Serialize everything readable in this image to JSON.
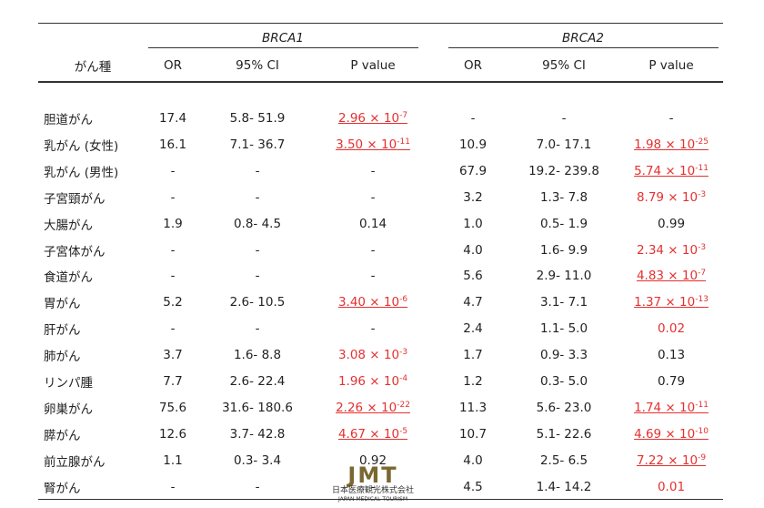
{
  "table": {
    "groups": [
      "BRCA1",
      "BRCA2"
    ],
    "columns": [
      "がん種",
      "OR",
      "95% CI",
      "P value",
      "OR",
      "95% CI",
      "P value"
    ],
    "rows": [
      {
        "name": "胆道がん",
        "cells": [
          "17.4",
          "5.8- 51.9",
          {
            "text": "2.96 × 10",
            "sup": "-7",
            "color": "red",
            "underline": true
          },
          "-",
          "-",
          "-"
        ]
      },
      {
        "name": "乳がん (女性)",
        "cells": [
          "16.1",
          "7.1- 36.7",
          {
            "text": "3.50 × 10",
            "sup": "-11",
            "color": "red",
            "underline": true
          },
          "10.9",
          "7.0- 17.1",
          {
            "text": "1.98 × 10",
            "sup": "-25",
            "color": "red",
            "underline": true
          }
        ]
      },
      {
        "name": "乳がん (男性)",
        "cells": [
          "-",
          "-",
          "-",
          "67.9",
          "19.2- 239.8",
          {
            "text": "5.74 × 10",
            "sup": "-11",
            "color": "red",
            "underline": true
          }
        ]
      },
      {
        "name": "子宮頸がん",
        "cells": [
          "-",
          "-",
          "-",
          "3.2",
          "1.3- 7.8",
          {
            "text": "8.79 × 10",
            "sup": "-3",
            "color": "red",
            "underline": false
          }
        ]
      },
      {
        "name": "大腸がん",
        "cells": [
          "1.9",
          "0.8- 4.5",
          "0.14",
          "1.0",
          "0.5- 1.9",
          "0.99"
        ]
      },
      {
        "name": "子宮体がん",
        "cells": [
          "-",
          "-",
          "-",
          "4.0",
          "1.6- 9.9",
          {
            "text": "2.34 × 10",
            "sup": "-3",
            "color": "red",
            "underline": false
          }
        ]
      },
      {
        "name": "食道がん",
        "cells": [
          "-",
          "-",
          "-",
          "5.6",
          "2.9- 11.0",
          {
            "text": "4.83 × 10",
            "sup": "-7",
            "color": "red",
            "underline": true
          }
        ]
      },
      {
        "name": "胃がん",
        "cells": [
          "5.2",
          "2.6- 10.5",
          {
            "text": "3.40 × 10",
            "sup": "-6",
            "color": "red",
            "underline": true
          },
          "4.7",
          "3.1- 7.1",
          {
            "text": "1.37 × 10",
            "sup": "-13",
            "color": "red",
            "underline": true
          }
        ]
      },
      {
        "name": "肝がん",
        "cells": [
          "-",
          "-",
          "-",
          "2.4",
          "1.1- 5.0",
          {
            "text": "0.02",
            "color": "red",
            "underline": false
          }
        ]
      },
      {
        "name": "肺がん",
        "cells": [
          "3.7",
          "1.6- 8.8",
          {
            "text": "3.08 × 10",
            "sup": "-3",
            "color": "red",
            "underline": false
          },
          "1.7",
          "0.9- 3.3",
          "0.13"
        ]
      },
      {
        "name": "リンパ腫",
        "cells": [
          "7.7",
          "2.6- 22.4",
          {
            "text": "1.96 × 10",
            "sup": "-4",
            "color": "red",
            "underline": false
          },
          "1.2",
          "0.3- 5.0",
          "0.79"
        ]
      },
      {
        "name": "卵巣がん",
        "cells": [
          "75.6",
          "31.6- 180.6",
          {
            "text": "2.26 × 10",
            "sup": "-22",
            "color": "red",
            "underline": true
          },
          "11.3",
          "5.6- 23.0",
          {
            "text": "1.74 × 10",
            "sup": "-11",
            "color": "red",
            "underline": true
          }
        ]
      },
      {
        "name": "膵がん",
        "cells": [
          "12.6",
          "3.7- 42.8",
          {
            "text": "4.67 × 10",
            "sup": "-5",
            "color": "red",
            "underline": true
          },
          "10.7",
          "5.1- 22.6",
          {
            "text": "4.69 × 10",
            "sup": "-10",
            "color": "red",
            "underline": true
          }
        ]
      },
      {
        "name": "前立腺がん",
        "cells": [
          "1.1",
          "0.3- 3.4",
          "0.92",
          "4.0",
          "2.5- 6.5",
          {
            "text": "7.22 × 10",
            "sup": "-9",
            "color": "red",
            "underline": true
          }
        ]
      },
      {
        "name": "腎がん",
        "cells": [
          "-",
          "-",
          "-",
          "4.5",
          "1.4- 14.2",
          {
            "text": "0.01",
            "color": "red",
            "underline": false
          }
        ]
      }
    ]
  },
  "watermark": {
    "logo": "JMT",
    "name": "日本医療観光株式会社",
    "english": "JAPAN MEDICAL TOURISM"
  }
}
